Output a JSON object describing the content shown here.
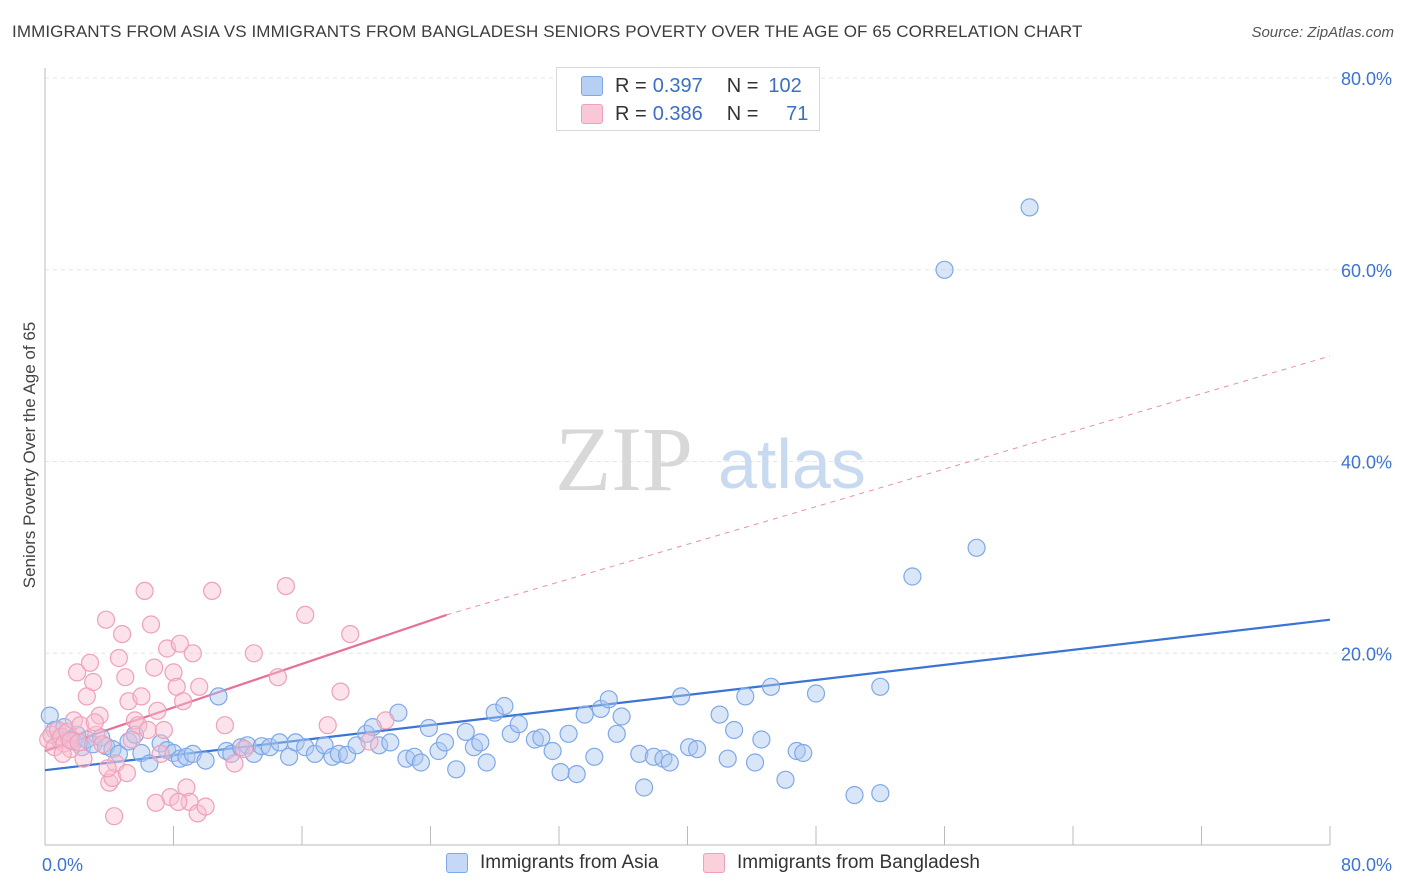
{
  "title": "IMMIGRANTS FROM ASIA VS IMMIGRANTS FROM BANGLADESH SENIORS POVERTY OVER THE AGE OF 65 CORRELATION CHART",
  "source": "Source: ZipAtlas.com",
  "watermark": {
    "zip": "ZIP",
    "atlas": "atlas"
  },
  "legend": {
    "r_label": "R =",
    "n_label": "N =",
    "entries": [
      {
        "r": "0.397",
        "n": "102",
        "color": "#7fa8e8",
        "fill": "#b7cff3"
      },
      {
        "r": "0.386",
        "n": "71",
        "color": "#f0a0b8",
        "fill": "#f8c8d6"
      }
    ]
  },
  "bottom_legend": [
    {
      "label": "Immigrants from Asia",
      "color": "#7fa8e8",
      "fill": "#c5d8f5"
    },
    {
      "label": "Immigrants from Bangladesh",
      "color": "#f0a0b8",
      "fill": "#fad0dc"
    }
  ],
  "chart_data": {
    "type": "scatter",
    "title": "IMMIGRANTS FROM ASIA VS IMMIGRANTS FROM BANGLADESH SENIORS POVERTY OVER THE AGE OF 65 CORRELATION CHART",
    "xlabel": "",
    "ylabel": "Seniors Poverty Over the Age of 65",
    "xlim": [
      0,
      80
    ],
    "ylim": [
      0,
      80
    ],
    "x_tick_labels": [
      "0.0%",
      "80.0%"
    ],
    "y_tick_labels": [
      "20.0%",
      "40.0%",
      "60.0%",
      "80.0%"
    ],
    "y_ticks": [
      20,
      40,
      60,
      80
    ],
    "grid": true,
    "legend_position": "top-center",
    "series": [
      {
        "name": "Immigrants from Asia",
        "color": "#3a74d4",
        "point_color": "#7fa8e8",
        "point_fill": "rgba(170,200,240,0.45)",
        "trend": {
          "x": [
            0,
            80
          ],
          "y": [
            7.8,
            23.5
          ],
          "style": "solid"
        },
        "points": [
          [
            0.3,
            13.5
          ],
          [
            0.6,
            12.0
          ],
          [
            0.9,
            11.0
          ],
          [
            1.2,
            12.3
          ],
          [
            1.5,
            11.0
          ],
          [
            1.8,
            10.8
          ],
          [
            2.0,
            11.5
          ],
          [
            2.3,
            10.2
          ],
          [
            2.6,
            11.0
          ],
          [
            3.0,
            10.5
          ],
          [
            3.5,
            11.2
          ],
          [
            3.8,
            10.3
          ],
          [
            4.2,
            10.0
          ],
          [
            4.6,
            9.5
          ],
          [
            5.2,
            10.8
          ],
          [
            5.6,
            11.5
          ],
          [
            6.0,
            9.6
          ],
          [
            6.5,
            8.5
          ],
          [
            7.2,
            10.6
          ],
          [
            7.6,
            9.9
          ],
          [
            8.0,
            9.6
          ],
          [
            8.4,
            9.0
          ],
          [
            8.8,
            9.2
          ],
          [
            9.2,
            9.5
          ],
          [
            10.0,
            8.8
          ],
          [
            10.8,
            15.5
          ],
          [
            11.3,
            9.8
          ],
          [
            11.6,
            9.5
          ],
          [
            12.2,
            10.2
          ],
          [
            12.6,
            10.4
          ],
          [
            13.0,
            9.5
          ],
          [
            13.5,
            10.3
          ],
          [
            14.0,
            10.2
          ],
          [
            14.6,
            10.7
          ],
          [
            15.2,
            9.2
          ],
          [
            15.6,
            10.7
          ],
          [
            16.2,
            10.2
          ],
          [
            16.8,
            9.5
          ],
          [
            17.4,
            10.4
          ],
          [
            17.9,
            9.2
          ],
          [
            18.3,
            9.5
          ],
          [
            18.8,
            9.4
          ],
          [
            19.4,
            10.4
          ],
          [
            20.0,
            11.6
          ],
          [
            20.4,
            12.3
          ],
          [
            20.8,
            10.4
          ],
          [
            21.5,
            10.7
          ],
          [
            22.0,
            13.8
          ],
          [
            22.5,
            9.0
          ],
          [
            23.0,
            9.2
          ],
          [
            23.4,
            8.6
          ],
          [
            23.9,
            12.2
          ],
          [
            24.5,
            9.8
          ],
          [
            24.9,
            10.7
          ],
          [
            25.6,
            7.9
          ],
          [
            26.2,
            11.8
          ],
          [
            26.7,
            10.2
          ],
          [
            27.1,
            10.7
          ],
          [
            27.5,
            8.6
          ],
          [
            28.0,
            13.8
          ],
          [
            28.6,
            14.5
          ],
          [
            29.0,
            11.6
          ],
          [
            29.5,
            12.6
          ],
          [
            30.5,
            11.0
          ],
          [
            30.9,
            11.2
          ],
          [
            31.6,
            9.8
          ],
          [
            32.1,
            7.6
          ],
          [
            32.6,
            11.6
          ],
          [
            33.1,
            7.4
          ],
          [
            33.6,
            13.6
          ],
          [
            34.2,
            9.2
          ],
          [
            34.6,
            14.2
          ],
          [
            35.1,
            15.2
          ],
          [
            35.6,
            11.6
          ],
          [
            35.9,
            13.4
          ],
          [
            37.0,
            9.5
          ],
          [
            37.3,
            6.0
          ],
          [
            37.9,
            9.2
          ],
          [
            38.5,
            9.0
          ],
          [
            38.9,
            8.6
          ],
          [
            39.6,
            15.5
          ],
          [
            40.1,
            10.2
          ],
          [
            40.6,
            10.0
          ],
          [
            42.0,
            13.6
          ],
          [
            42.5,
            9.0
          ],
          [
            42.9,
            12.0
          ],
          [
            43.6,
            15.5
          ],
          [
            44.2,
            8.6
          ],
          [
            44.6,
            11.0
          ],
          [
            45.2,
            16.5
          ],
          [
            46.1,
            6.8
          ],
          [
            46.8,
            9.8
          ],
          [
            47.2,
            9.6
          ],
          [
            48.0,
            15.8
          ],
          [
            50.4,
            5.2
          ],
          [
            52.0,
            16.5
          ],
          [
            52.0,
            5.4
          ],
          [
            54.0,
            28.0
          ],
          [
            56.0,
            60.0
          ],
          [
            58.0,
            31.0
          ],
          [
            61.3,
            66.5
          ]
        ]
      },
      {
        "name": "Immigrants from Bangladesh",
        "color": "#e8709a",
        "point_color": "#f0a0b8",
        "point_fill": "rgba(248,190,208,0.45)",
        "trend": {
          "x": [
            0,
            25
          ],
          "y": [
            9.8,
            24.0
          ],
          "style": "solid"
        },
        "trend_ext": {
          "x": [
            25,
            80
          ],
          "y": [
            24.0,
            51.0
          ],
          "style": "dashed"
        },
        "points": [
          [
            0.2,
            11.0
          ],
          [
            0.4,
            11.5
          ],
          [
            0.6,
            10.2
          ],
          [
            0.8,
            12.0
          ],
          [
            1.0,
            11.3
          ],
          [
            1.2,
            10.6
          ],
          [
            1.4,
            11.8
          ],
          [
            1.6,
            10.0
          ],
          [
            1.8,
            13.0
          ],
          [
            2.0,
            18.0
          ],
          [
            2.2,
            12.5
          ],
          [
            2.4,
            9.0
          ],
          [
            2.6,
            15.5
          ],
          [
            2.8,
            19.0
          ],
          [
            3.0,
            17.0
          ],
          [
            3.2,
            11.5
          ],
          [
            3.4,
            13.5
          ],
          [
            3.6,
            10.5
          ],
          [
            3.8,
            23.5
          ],
          [
            4.0,
            6.5
          ],
          [
            4.2,
            7.0
          ],
          [
            4.4,
            8.5
          ],
          [
            4.6,
            19.5
          ],
          [
            4.8,
            22.0
          ],
          [
            5.0,
            17.5
          ],
          [
            5.2,
            15.0
          ],
          [
            5.4,
            11.0
          ],
          [
            5.6,
            13.0
          ],
          [
            5.8,
            12.5
          ],
          [
            6.0,
            15.5
          ],
          [
            6.2,
            26.5
          ],
          [
            6.4,
            12.0
          ],
          [
            6.6,
            23.0
          ],
          [
            6.8,
            18.5
          ],
          [
            7.0,
            14.0
          ],
          [
            7.2,
            9.5
          ],
          [
            7.4,
            12.0
          ],
          [
            7.6,
            20.5
          ],
          [
            7.8,
            5.0
          ],
          [
            8.0,
            18.0
          ],
          [
            8.2,
            16.5
          ],
          [
            8.4,
            21.0
          ],
          [
            8.6,
            15.0
          ],
          [
            8.8,
            6.0
          ],
          [
            9.0,
            4.5
          ],
          [
            9.2,
            20.0
          ],
          [
            9.6,
            16.5
          ],
          [
            10.4,
            26.5
          ],
          [
            11.2,
            12.5
          ],
          [
            11.8,
            8.5
          ],
          [
            12.4,
            10.0
          ],
          [
            13.0,
            20.0
          ],
          [
            14.5,
            17.5
          ],
          [
            15.0,
            27.0
          ],
          [
            16.2,
            24.0
          ],
          [
            17.6,
            12.5
          ],
          [
            18.4,
            16.0
          ],
          [
            19.0,
            22.0
          ],
          [
            20.2,
            10.8
          ],
          [
            21.2,
            13.0
          ],
          [
            1.1,
            9.5
          ],
          [
            1.6,
            10.9
          ],
          [
            2.1,
            10.7
          ],
          [
            3.1,
            12.8
          ],
          [
            3.9,
            8.0
          ],
          [
            4.3,
            3.0
          ],
          [
            5.1,
            7.5
          ],
          [
            6.9,
            4.4
          ],
          [
            8.3,
            4.5
          ],
          [
            9.5,
            3.3
          ],
          [
            10.0,
            4.0
          ]
        ]
      }
    ]
  }
}
